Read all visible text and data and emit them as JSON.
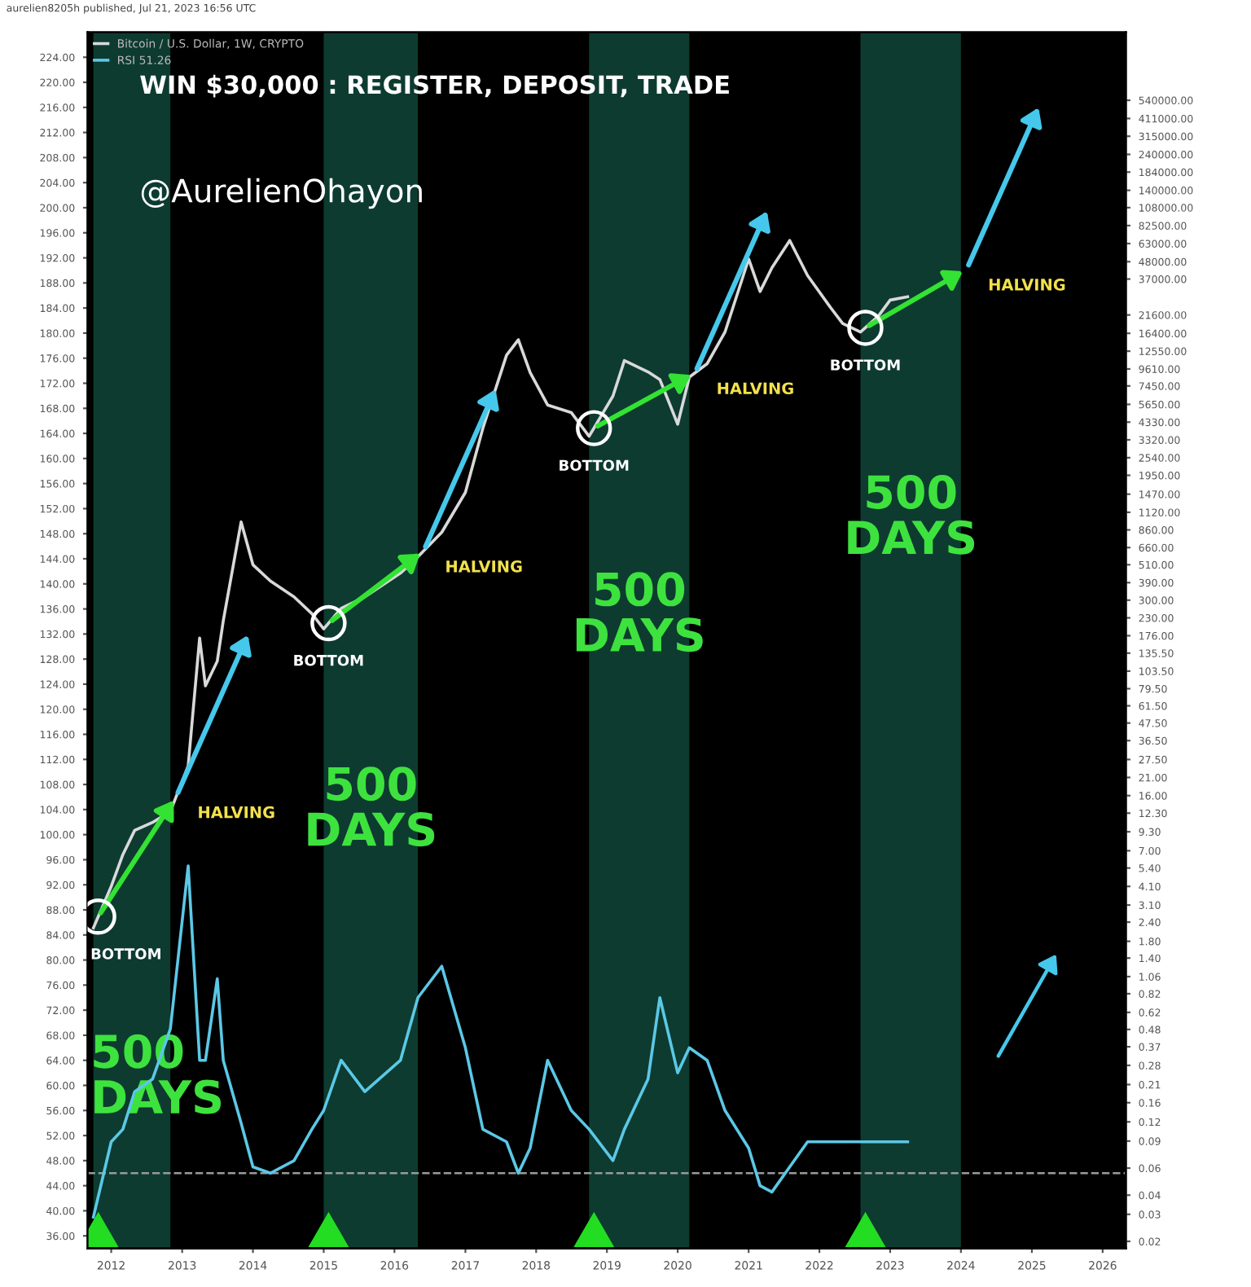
{
  "chart_data": {
    "type": "line",
    "title": "WIN $30,000 : REGISTER, DEPOSIT, TRADE",
    "subtitle": "@AurelienOhayon",
    "x": [
      "2011-10",
      "2012-01",
      "2012-03",
      "2012-05",
      "2012-08",
      "2012-11",
      "2013-02",
      "2013-04",
      "2013-05",
      "2013-07",
      "2013-08",
      "2013-11",
      "2014-01",
      "2014-04",
      "2014-08",
      "2014-11",
      "2015-01",
      "2015-04",
      "2015-08",
      "2016-02",
      "2016-05",
      "2016-09",
      "2017-01",
      "2017-04",
      "2017-08",
      "2017-10",
      "2017-12",
      "2018-03",
      "2018-07",
      "2018-10",
      "2019-02",
      "2019-04",
      "2019-08",
      "2019-10",
      "2020-01",
      "2020-03",
      "2020-06",
      "2020-09",
      "2021-01",
      "2021-03",
      "2021-05",
      "2021-08",
      "2021-11",
      "2022-03",
      "2022-05",
      "2022-08",
      "2022-11",
      "2023-01",
      "2023-04"
    ],
    "series": [
      {
        "name": "Bitcoin / U.S. Dollar, 1W, CRYPTO",
        "color": "#d9d9d9",
        "axis": "y2",
        "values": [
          2.2,
          4.1,
          6.6,
          9.5,
          10.7,
          12.6,
          25,
          170,
          83,
          120,
          220,
          970,
          510,
          400,
          315,
          245,
          195,
          265,
          315,
          450,
          575,
          830,
          1510,
          3950,
          11800,
          14900,
          9100,
          5600,
          5000,
          3500,
          6400,
          10900,
          9200,
          8200,
          4200,
          8500,
          10400,
          16700,
          50000,
          30700,
          43800,
          66000,
          39000,
          24000,
          19000,
          16700,
          21200,
          27000,
          28400
        ]
      },
      {
        "name": "RSI 51.26",
        "color": "#5bc8e6",
        "axis": "y",
        "values": [
          39,
          51,
          53,
          59,
          61,
          69,
          95,
          64,
          64,
          77,
          64,
          54,
          47,
          46,
          48,
          53,
          56,
          64,
          59,
          64,
          74,
          79,
          66,
          53,
          51,
          46,
          50,
          64,
          56,
          53,
          48,
          53,
          61,
          74,
          62,
          66,
          64,
          56,
          50,
          44,
          43,
          47,
          51,
          51,
          51,
          51,
          51,
          51,
          51
        ]
      }
    ],
    "xlim": [
      "2011-09",
      "2026-05"
    ],
    "xticks": [
      {
        "value": "2012",
        "label": "2012"
      },
      {
        "value": "2013",
        "label": "2013"
      },
      {
        "value": "2014",
        "label": "2014"
      },
      {
        "value": "2015",
        "label": "2015"
      },
      {
        "value": "2016",
        "label": "2016"
      },
      {
        "value": "2017",
        "label": "2017"
      },
      {
        "value": "2018",
        "label": "2018"
      },
      {
        "value": "2019",
        "label": "2019"
      },
      {
        "value": "2020",
        "label": "2020"
      },
      {
        "value": "2021",
        "label": "2021"
      },
      {
        "value": "2022",
        "label": "2022"
      },
      {
        "value": "2023",
        "label": "2023"
      },
      {
        "value": "2024",
        "label": "2024"
      },
      {
        "value": "2025",
        "label": "2025"
      },
      {
        "value": "2026",
        "label": "2026"
      }
    ],
    "ylim": [
      34,
      228
    ],
    "yticks": [
      {
        "value": 36,
        "label": "36.00"
      },
      {
        "value": 40,
        "label": "40.00"
      },
      {
        "value": 44,
        "label": "44.00"
      },
      {
        "value": 48,
        "label": "48.00"
      },
      {
        "value": 52,
        "label": "52.00"
      },
      {
        "value": 56,
        "label": "56.00"
      },
      {
        "value": 60,
        "label": "60.00"
      },
      {
        "value": 64,
        "label": "64.00"
      },
      {
        "value": 68,
        "label": "68.00"
      },
      {
        "value": 72,
        "label": "72.00"
      },
      {
        "value": 76,
        "label": "76.00"
      },
      {
        "value": 80,
        "label": "80.00"
      },
      {
        "value": 84,
        "label": "84.00"
      },
      {
        "value": 88,
        "label": "88.00"
      },
      {
        "value": 92,
        "label": "92.00"
      },
      {
        "value": 96,
        "label": "96.00"
      },
      {
        "value": 100,
        "label": "100.00"
      },
      {
        "value": 104,
        "label": "104.00"
      },
      {
        "value": 108,
        "label": "108.00"
      },
      {
        "value": 112,
        "label": "112.00"
      },
      {
        "value": 116,
        "label": "116.00"
      },
      {
        "value": 120,
        "label": "120.00"
      },
      {
        "value": 124,
        "label": "124.00"
      },
      {
        "value": 128,
        "label": "128.00"
      },
      {
        "value": 132,
        "label": "132.00"
      },
      {
        "value": 136,
        "label": "136.00"
      },
      {
        "value": 140,
        "label": "140.00"
      },
      {
        "value": 144,
        "label": "144.00"
      },
      {
        "value": 148,
        "label": "148.00"
      },
      {
        "value": 152,
        "label": "152.00"
      },
      {
        "value": 156,
        "label": "156.00"
      },
      {
        "value": 160,
        "label": "160.00"
      },
      {
        "value": 164,
        "label": "164.00"
      },
      {
        "value": 168,
        "label": "168.00"
      },
      {
        "value": 172,
        "label": "172.00"
      },
      {
        "value": 176,
        "label": "176.00"
      },
      {
        "value": 180,
        "label": "180.00"
      },
      {
        "value": 184,
        "label": "184.00"
      },
      {
        "value": 188,
        "label": "188.00"
      },
      {
        "value": 192,
        "label": "192.00"
      },
      {
        "value": 196,
        "label": "196.00"
      },
      {
        "value": 200,
        "label": "200.00"
      },
      {
        "value": 204,
        "label": "204.00"
      },
      {
        "value": 208,
        "label": "208.00"
      },
      {
        "value": 212,
        "label": "212.00"
      },
      {
        "value": 216,
        "label": "216.00"
      },
      {
        "value": 220,
        "label": "220.00"
      },
      {
        "value": 224,
        "label": "224.00"
      }
    ],
    "log": "y2",
    "y2lim": [
      0.018,
      1500000
    ],
    "y2ticks": [
      {
        "value": 540000,
        "label": "540000.00"
      },
      {
        "value": 411000,
        "label": "411000.00"
      },
      {
        "value": 315000,
        "label": "315000.00"
      },
      {
        "value": 240000,
        "label": "240000.00"
      },
      {
        "value": 184000,
        "label": "184000.00"
      },
      {
        "value": 140000,
        "label": "140000.00"
      },
      {
        "value": 108000,
        "label": "108000.00"
      },
      {
        "value": 82500,
        "label": "82500.00"
      },
      {
        "value": 63000,
        "label": "63000.00"
      },
      {
        "value": 48000,
        "label": "48000.00"
      },
      {
        "value": 37000,
        "label": "37000.00"
      },
      {
        "value": 21600,
        "label": "21600.00"
      },
      {
        "value": 16400,
        "label": "16400.00"
      },
      {
        "value": 12550,
        "label": "12550.00"
      },
      {
        "value": 9610,
        "label": "9610.00"
      },
      {
        "value": 7450,
        "label": "7450.00"
      },
      {
        "value": 5650,
        "label": "5650.00"
      },
      {
        "value": 4330,
        "label": "4330.00"
      },
      {
        "value": 3320,
        "label": "3320.00"
      },
      {
        "value": 2540,
        "label": "2540.00"
      },
      {
        "value": 1950,
        "label": "1950.00"
      },
      {
        "value": 1470,
        "label": "1470.00"
      },
      {
        "value": 1120,
        "label": "1120.00"
      },
      {
        "value": 860,
        "label": "860.00"
      },
      {
        "value": 660,
        "label": "660.00"
      },
      {
        "value": 510,
        "label": "510.00"
      },
      {
        "value": 390,
        "label": "390.00"
      },
      {
        "value": 300,
        "label": "300.00"
      },
      {
        "value": 230,
        "label": "230.00"
      },
      {
        "value": 176,
        "label": "176.00"
      },
      {
        "value": 135.5,
        "label": "135.50"
      },
      {
        "value": 103.5,
        "label": "103.50"
      },
      {
        "value": 79.5,
        "label": "79.50"
      },
      {
        "value": 61.5,
        "label": "61.50"
      },
      {
        "value": 47.5,
        "label": "47.50"
      },
      {
        "value": 36.5,
        "label": "36.50"
      },
      {
        "value": 27.5,
        "label": "27.50"
      },
      {
        "value": 21,
        "label": "21.00"
      },
      {
        "value": 16,
        "label": "16.00"
      },
      {
        "value": 12.3,
        "label": "12.30"
      },
      {
        "value": 9.3,
        "label": "9.30"
      },
      {
        "value": 7,
        "label": "7.00"
      },
      {
        "value": 5.4,
        "label": "5.40"
      },
      {
        "value": 4.1,
        "label": "4.10"
      },
      {
        "value": 3.1,
        "label": "3.10"
      },
      {
        "value": 2.4,
        "label": "2.40"
      },
      {
        "value": 1.8,
        "label": "1.80"
      },
      {
        "value": 1.4,
        "label": "1.40"
      },
      {
        "value": 1.06,
        "label": "1.06"
      },
      {
        "value": 0.82,
        "label": "0.82"
      },
      {
        "value": 0.62,
        "label": "0.62"
      },
      {
        "value": 0.48,
        "label": "0.48"
      },
      {
        "value": 0.37,
        "label": "0.37"
      },
      {
        "value": 0.28,
        "label": "0.28"
      },
      {
        "value": 0.21,
        "label": "0.21"
      },
      {
        "value": 0.16,
        "label": "0.16"
      },
      {
        "value": 0.12,
        "label": "0.12"
      },
      {
        "value": 0.09,
        "label": "0.09"
      },
      {
        "value": 0.06,
        "label": "0.06"
      },
      {
        "value": 0.04,
        "label": "0.04"
      },
      {
        "value": 0.03,
        "label": "0.03"
      },
      {
        "value": 0.02,
        "label": "0.02"
      }
    ],
    "bands": [
      {
        "axis": "x",
        "from": "2011-10",
        "to": "2012-11",
        "label": "500\nDAYS",
        "color": "#0d3b30"
      },
      {
        "axis": "x",
        "from": "2015-01",
        "to": "2016-05",
        "label": "500\nDAYS",
        "color": "#0d3b30"
      },
      {
        "axis": "x",
        "from": "2018-10",
        "to": "2020-03",
        "label": "500\nDAYS",
        "color": "#0d3b30"
      },
      {
        "axis": "x",
        "from": "2022-08",
        "to": "2024-01",
        "label": "500\nDAYS",
        "color": "#0d3b30"
      }
    ],
    "ref_lines": [
      {
        "axis": "y",
        "value": 46,
        "label": null,
        "color": "#9a9a9a",
        "line_style": "dashed"
      }
    ],
    "annotations": [
      "BOTTOM",
      "HALVING",
      "BOTTOM",
      "HALVING",
      "BOTTOM",
      "HALVING",
      "BOTTOM",
      "HALVING",
      "aurelien8205h published, Jul 21, 2023 16:56 UTC"
    ],
    "legend": "top left",
    "grid": false
  }
}
